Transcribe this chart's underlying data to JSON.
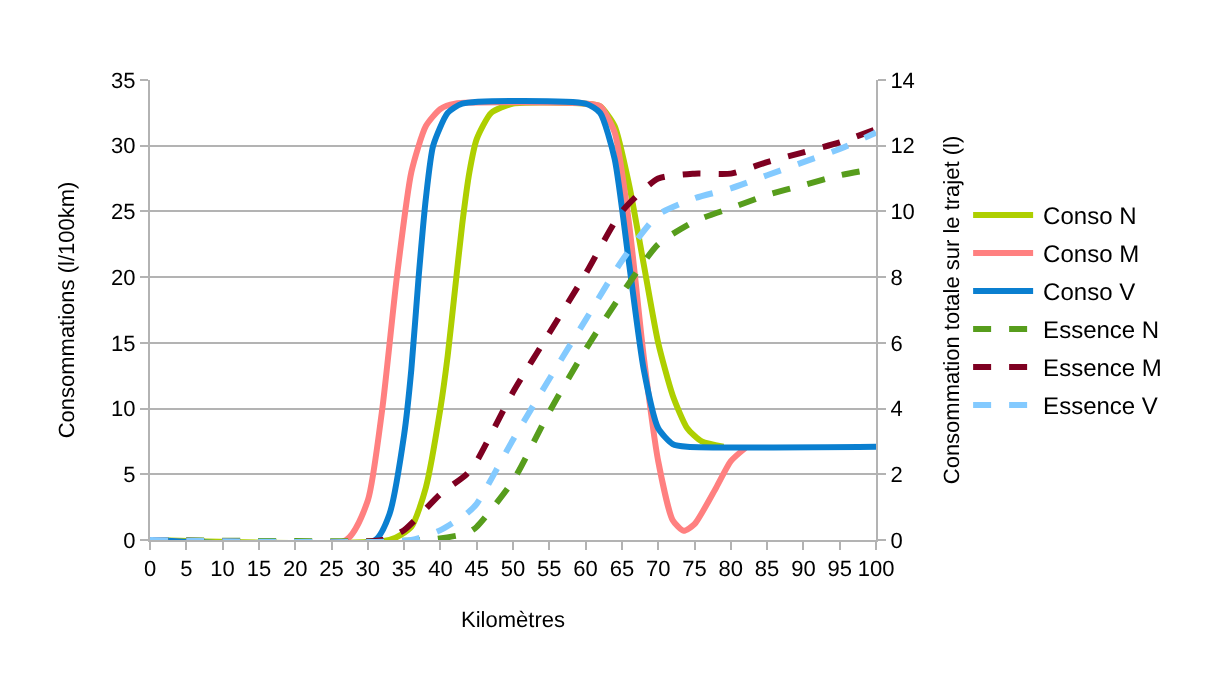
{
  "chart_data": {
    "type": "line",
    "xlabel": "Kilomètres",
    "ylabel": "Consommations (l/100km)",
    "y2label": "Consommation totale sur le trajet (l)",
    "xlim": [
      0,
      100
    ],
    "xticks": [
      0,
      5,
      10,
      15,
      20,
      25,
      30,
      35,
      40,
      45,
      50,
      55,
      60,
      65,
      70,
      75,
      80,
      85,
      90,
      95,
      100
    ],
    "ylim": [
      0,
      35
    ],
    "yticks": [
      0,
      5,
      10,
      15,
      20,
      25,
      30,
      35
    ],
    "y2lim": [
      0,
      14
    ],
    "y2ticks": [
      0,
      2,
      4,
      6,
      8,
      10,
      12,
      14
    ],
    "grid": "y",
    "legend": "right",
    "marker": "none",
    "series": [
      {
        "name": "Conso N",
        "color": "#aecf00",
        "line_style": "solid",
        "x": [
          0,
          33,
          36,
          38,
          40,
          41,
          42,
          43,
          44,
          45,
          47,
          50,
          60,
          62,
          64,
          66,
          68,
          70,
          72,
          74,
          76,
          79
        ],
        "values": [
          0,
          0,
          1,
          4,
          10,
          14,
          19,
          24,
          28,
          30.5,
          32.5,
          33.2,
          33.2,
          33,
          31.5,
          27,
          21,
          15,
          11,
          8.5,
          7.5,
          7.1
        ]
      },
      {
        "name": "Conso M",
        "color": "#ff8080",
        "line_style": "solid",
        "x": [
          0,
          27,
          30,
          32,
          34,
          36,
          38,
          40,
          42,
          60,
          62,
          64,
          66,
          68,
          70,
          72,
          73.5,
          75,
          78,
          80,
          82
        ],
        "values": [
          0,
          0,
          3,
          10,
          20,
          28,
          31.5,
          32.8,
          33.2,
          33.2,
          33,
          31,
          24,
          14,
          6,
          1.5,
          0.7,
          1.2,
          4,
          6,
          7
        ]
      },
      {
        "name": "Conso V",
        "color": "#0a7fd0",
        "line_style": "solid",
        "x": [
          0,
          31,
          33,
          35,
          36,
          37,
          38,
          39,
          41,
          43,
          60,
          62,
          64,
          66,
          68,
          70,
          72,
          74,
          100
        ],
        "values": [
          0,
          0,
          2,
          8,
          13,
          20,
          26,
          30,
          32.5,
          33.2,
          33.2,
          32.5,
          29,
          21,
          13,
          8.5,
          7.3,
          7.1,
          7.1
        ]
      },
      {
        "name": "Essence N",
        "color": "#579d1c",
        "line_style": "dashed",
        "axis": "y2",
        "x": [
          0,
          38,
          43.6,
          45,
          50,
          55,
          60,
          65,
          70,
          75,
          80,
          85,
          90,
          95,
          100
        ],
        "values": [
          0,
          0,
          0.2,
          0.4,
          1.8,
          3.9,
          5.8,
          7.5,
          9.0,
          9.7,
          10.1,
          10.5,
          10.8,
          11.1,
          11.3
        ]
      },
      {
        "name": "Essence M",
        "color": "#7e0021",
        "line_style": "dashed",
        "axis": "y2",
        "x": [
          0,
          32,
          35,
          40,
          43.6,
          45,
          50,
          55,
          60,
          65,
          70,
          75,
          80,
          85,
          90,
          95,
          100
        ],
        "values": [
          0,
          0,
          0.3,
          1.4,
          2.0,
          2.4,
          4.5,
          6.3,
          8.1,
          10.0,
          11.0,
          11.15,
          11.15,
          11.5,
          11.8,
          12.1,
          12.5
        ]
      },
      {
        "name": "Essence V",
        "color": "#83caff",
        "line_style": "dashed",
        "axis": "y2",
        "x": [
          0,
          36,
          40,
          43.6,
          45,
          50,
          55,
          60,
          65,
          70,
          75,
          80,
          85,
          90,
          95,
          100
        ],
        "values": [
          0,
          0,
          0.3,
          0.8,
          1.1,
          3.05,
          4.9,
          6.7,
          8.5,
          9.9,
          10.4,
          10.7,
          11.1,
          11.5,
          11.9,
          12.4
        ]
      }
    ]
  }
}
